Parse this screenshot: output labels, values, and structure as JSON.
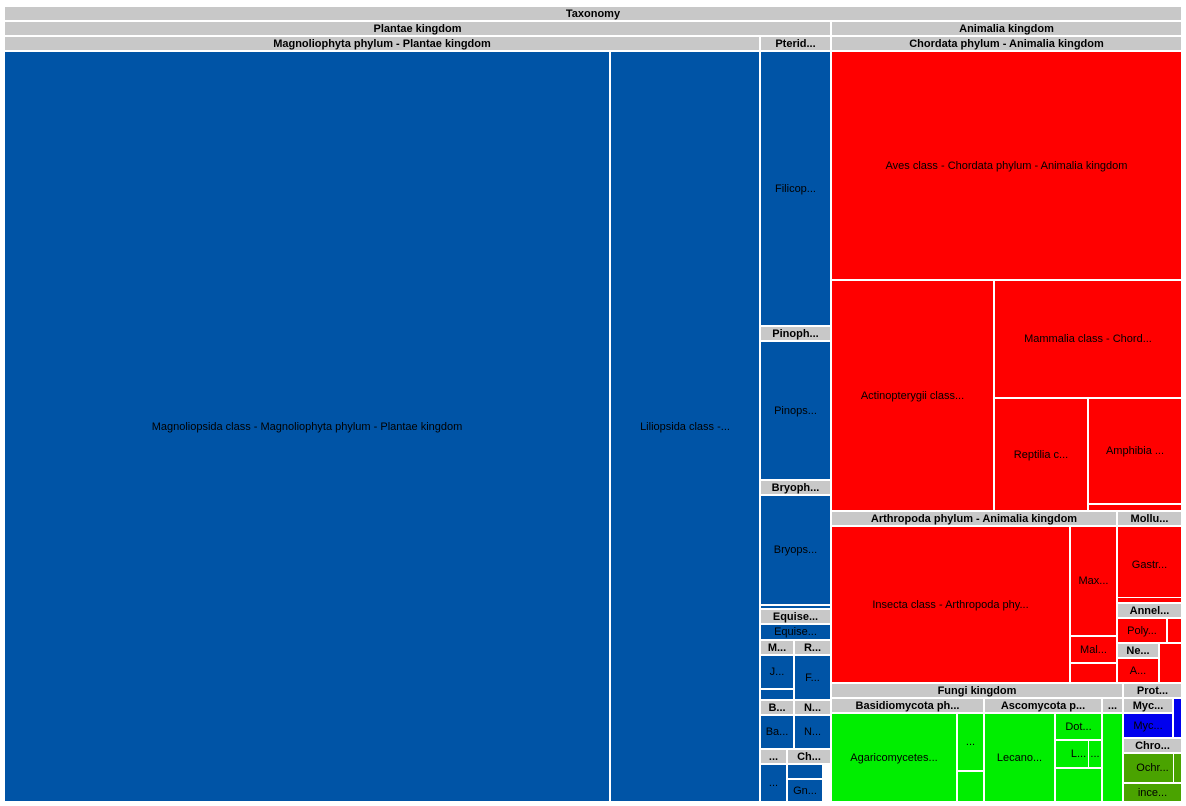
{
  "chart_data": {
    "type": "treemap",
    "colors": {
      "plantae": "#0054a6",
      "animalia": "#ff0000",
      "fungi": "#00ee00",
      "protozoa_blue": "#0000ee",
      "protozoa_green": "#4aa300",
      "header": "#c8c8c8"
    },
    "headers": [
      {
        "label": "Taxonomy"
      },
      {
        "label": "Plantae kingdom"
      },
      {
        "label": "Animalia kingdom"
      },
      {
        "label": "Magnoliophyta phylum - Plantae kingdom"
      },
      {
        "label": "Pterid..."
      },
      {
        "label": "Chordata phylum - Animalia kingdom"
      },
      {
        "label": "Pinoph..."
      },
      {
        "label": "Bryoph..."
      },
      {
        "label": "Equise..."
      },
      {
        "label": "M..."
      },
      {
        "label": "R..."
      },
      {
        "label": "B..."
      },
      {
        "label": "N..."
      },
      {
        "label": "..."
      },
      {
        "label": "Ch..."
      },
      {
        "label": "Arthropoda phylum - Animalia kingdom"
      },
      {
        "label": "Mollu..."
      },
      {
        "label": "Annel..."
      },
      {
        "label": "Ne..."
      },
      {
        "label": "Fungi kingdom"
      },
      {
        "label": "Prot..."
      },
      {
        "label": "Basidiomycota ph..."
      },
      {
        "label": "Ascomycota p..."
      },
      {
        "label": "..."
      },
      {
        "label": "Myc..."
      },
      {
        "label": "Chro..."
      }
    ],
    "leaves": [
      {
        "label": "Magnoliopsida class - Magnoliophyta phylum - Plantae kingdom",
        "group": "plantae"
      },
      {
        "label": "Liliopsida class -...",
        "group": "plantae"
      },
      {
        "label": "Filicop...",
        "group": "plantae"
      },
      {
        "label": "Pinops...",
        "group": "plantae"
      },
      {
        "label": "Bryops...",
        "group": "plantae"
      },
      {
        "label": "",
        "group": "plantae"
      },
      {
        "label": "Equise...",
        "group": "plantae"
      },
      {
        "label": "J...",
        "group": "plantae"
      },
      {
        "label": "",
        "group": "plantae"
      },
      {
        "label": "F...",
        "group": "plantae"
      },
      {
        "label": "Ba...",
        "group": "plantae"
      },
      {
        "label": "N...",
        "group": "plantae"
      },
      {
        "label": "...",
        "group": "plantae"
      },
      {
        "label": "Gn...",
        "group": "plantae"
      },
      {
        "label": "",
        "group": "plantae"
      },
      {
        "label": "Aves class - Chordata phylum - Animalia kingdom",
        "group": "animalia"
      },
      {
        "label": "Actinopterygii class...",
        "group": "animalia"
      },
      {
        "label": "Mammalia class - Chord...",
        "group": "animalia"
      },
      {
        "label": "Reptilia c...",
        "group": "animalia"
      },
      {
        "label": "Amphibia ...",
        "group": "animalia"
      },
      {
        "label": "",
        "group": "animalia"
      },
      {
        "label": "Insecta class - Arthropoda phy...",
        "group": "animalia"
      },
      {
        "label": "Max...",
        "group": "animalia"
      },
      {
        "label": "Mal...",
        "group": "animalia"
      },
      {
        "label": "",
        "group": "animalia"
      },
      {
        "label": "Gastr...",
        "group": "animalia"
      },
      {
        "label": "",
        "group": "animalia"
      },
      {
        "label": "Poly...",
        "group": "animalia"
      },
      {
        "label": "",
        "group": "animalia"
      },
      {
        "label": "A...",
        "group": "animalia"
      },
      {
        "label": "",
        "group": "animalia"
      },
      {
        "label": "Agaricomycetes...",
        "group": "fungi"
      },
      {
        "label": "...",
        "group": "fungi"
      },
      {
        "label": "",
        "group": "fungi"
      },
      {
        "label": "Lecano...",
        "group": "fungi"
      },
      {
        "label": "Dot...",
        "group": "fungi"
      },
      {
        "label": "L...",
        "group": "fungi"
      },
      {
        "label": "...",
        "group": "fungi"
      },
      {
        "label": "",
        "group": "fungi"
      },
      {
        "label": "",
        "group": "fungi"
      },
      {
        "label": "Myc...",
        "group": "protozoa_blue"
      },
      {
        "label": "",
        "group": "protozoa_blue"
      },
      {
        "label": "Ochr...",
        "group": "protozoa_green"
      },
      {
        "label": "",
        "group": "protozoa_green"
      },
      {
        "label": "ince...",
        "group": "protozoa_green"
      }
    ]
  }
}
